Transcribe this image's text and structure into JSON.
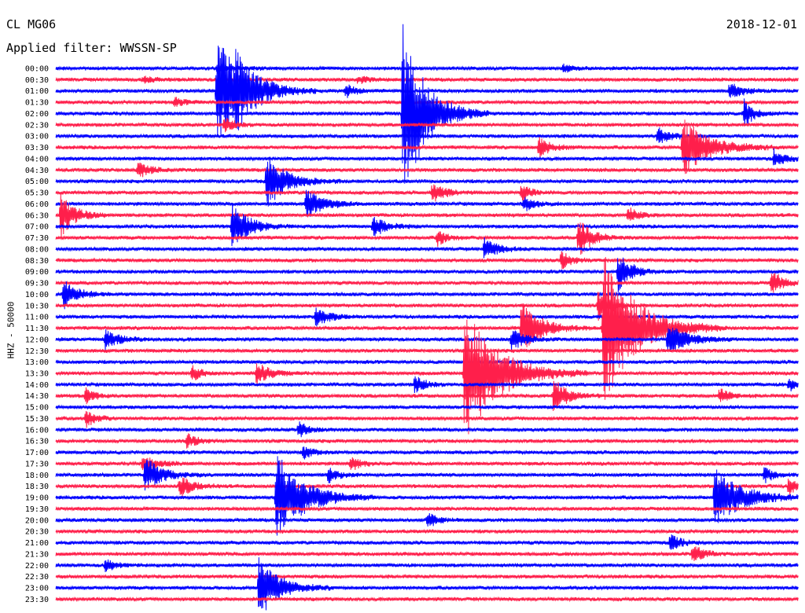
{
  "header": {
    "station": "CL MG06",
    "date": "2018-12-01",
    "filter": "Applied filter: WWSSN-SP"
  },
  "chart_data": {
    "type": "line",
    "title": "CL MG06",
    "date": "2018-12-01",
    "filter": "WWSSN-SP",
    "ylabel": "HHZ - 50000",
    "xlim_minutes": [
      0,
      30
    ],
    "colors": [
      "#0000ff",
      "#ff1f4b"
    ],
    "row_labels": [
      "00:00",
      "00:30",
      "01:00",
      "01:30",
      "02:00",
      "02:30",
      "03:00",
      "03:30",
      "04:00",
      "04:30",
      "05:00",
      "05:30",
      "06:00",
      "06:30",
      "07:00",
      "07:30",
      "08:00",
      "08:30",
      "09:00",
      "09:30",
      "10:00",
      "10:30",
      "11:00",
      "11:30",
      "12:00",
      "12:30",
      "13:00",
      "13:30",
      "14:00",
      "14:30",
      "15:00",
      "15:30",
      "16:00",
      "16:30",
      "17:00",
      "17:30",
      "18:00",
      "18:30",
      "19:00",
      "19:30",
      "20:00",
      "20:30",
      "21:00",
      "21:30",
      "22:00",
      "22:30",
      "23:00",
      "23:30"
    ],
    "events": [
      {
        "row": 0,
        "minute": 6.5,
        "amplitude": 6,
        "duration": 2.5
      },
      {
        "row": 0,
        "minute": 20.5,
        "amplitude": 5,
        "duration": 1.5
      },
      {
        "row": 1,
        "minute": 3.5,
        "amplitude": 4,
        "duration": 2.0
      },
      {
        "row": 1,
        "minute": 12.2,
        "amplitude": 5,
        "duration": 1.5
      },
      {
        "row": 2,
        "minute": 6.5,
        "amplitude": 75,
        "duration": 4.0
      },
      {
        "row": 2,
        "minute": 7.2,
        "amplitude": 26,
        "duration": 2.5
      },
      {
        "row": 2,
        "minute": 11.7,
        "amplitude": 9,
        "duration": 1.5
      },
      {
        "row": 2,
        "minute": 27.2,
        "amplitude": 10,
        "duration": 2.0
      },
      {
        "row": 3,
        "minute": 4.8,
        "amplitude": 5,
        "duration": 1.5
      },
      {
        "row": 4,
        "minute": 14.0,
        "amplitude": 115,
        "duration": 3.5
      },
      {
        "row": 4,
        "minute": 27.8,
        "amplitude": 18,
        "duration": 1.5
      },
      {
        "row": 5,
        "minute": 6.8,
        "amplitude": 10,
        "duration": 1.5
      },
      {
        "row": 6,
        "minute": 24.3,
        "amplitude": 10,
        "duration": 2.0
      },
      {
        "row": 7,
        "minute": 19.5,
        "amplitude": 12,
        "duration": 2.0
      },
      {
        "row": 7,
        "minute": 25.3,
        "amplitude": 38,
        "duration": 4.0
      },
      {
        "row": 8,
        "minute": 29.0,
        "amplitude": 12,
        "duration": 1.5
      },
      {
        "row": 9,
        "minute": 3.3,
        "amplitude": 10,
        "duration": 2.0
      },
      {
        "row": 10,
        "minute": 8.5,
        "amplitude": 34,
        "duration": 3.0
      },
      {
        "row": 11,
        "minute": 15.2,
        "amplitude": 12,
        "duration": 2.0
      },
      {
        "row": 11,
        "minute": 18.8,
        "amplitude": 10,
        "duration": 1.5
      },
      {
        "row": 12,
        "minute": 10.1,
        "amplitude": 20,
        "duration": 2.5
      },
      {
        "row": 12,
        "minute": 18.9,
        "amplitude": 10,
        "duration": 1.5
      },
      {
        "row": 13,
        "minute": 0.2,
        "amplitude": 30,
        "duration": 2.0
      },
      {
        "row": 13,
        "minute": 23.1,
        "amplitude": 10,
        "duration": 1.5
      },
      {
        "row": 14,
        "minute": 7.1,
        "amplitude": 30,
        "duration": 2.5
      },
      {
        "row": 14,
        "minute": 12.8,
        "amplitude": 13,
        "duration": 2.0
      },
      {
        "row": 15,
        "minute": 15.4,
        "amplitude": 10,
        "duration": 1.5
      },
      {
        "row": 15,
        "minute": 21.1,
        "amplitude": 25,
        "duration": 2.0
      },
      {
        "row": 16,
        "minute": 17.3,
        "amplitude": 14,
        "duration": 2.0
      },
      {
        "row": 17,
        "minute": 20.4,
        "amplitude": 12,
        "duration": 1.5
      },
      {
        "row": 18,
        "minute": 22.7,
        "amplitude": 25,
        "duration": 2.0
      },
      {
        "row": 19,
        "minute": 28.9,
        "amplitude": 18,
        "duration": 1.5
      },
      {
        "row": 20,
        "minute": 0.3,
        "amplitude": 20,
        "duration": 2.0
      },
      {
        "row": 21,
        "minute": 21.9,
        "amplitude": 18,
        "duration": 2.0
      },
      {
        "row": 22,
        "minute": 10.5,
        "amplitude": 12,
        "duration": 2.0
      },
      {
        "row": 23,
        "minute": 18.8,
        "amplitude": 35,
        "duration": 3.0
      },
      {
        "row": 23,
        "minute": 22.1,
        "amplitude": 100,
        "duration": 5.0
      },
      {
        "row": 24,
        "minute": 2.0,
        "amplitude": 12,
        "duration": 2.0
      },
      {
        "row": 24,
        "minute": 18.4,
        "amplitude": 14,
        "duration": 2.0
      },
      {
        "row": 24,
        "minute": 24.7,
        "amplitude": 20,
        "duration": 3.0
      },
      {
        "row": 27,
        "minute": 5.5,
        "amplitude": 10,
        "duration": 1.5
      },
      {
        "row": 27,
        "minute": 8.1,
        "amplitude": 15,
        "duration": 2.0
      },
      {
        "row": 27,
        "minute": 16.5,
        "amplitude": 90,
        "duration": 5.0
      },
      {
        "row": 28,
        "minute": 14.5,
        "amplitude": 12,
        "duration": 1.5
      },
      {
        "row": 28,
        "minute": 29.6,
        "amplitude": 10,
        "duration": 1.0
      },
      {
        "row": 29,
        "minute": 1.2,
        "amplitude": 10,
        "duration": 1.5
      },
      {
        "row": 29,
        "minute": 20.1,
        "amplitude": 22,
        "duration": 2.0
      },
      {
        "row": 29,
        "minute": 26.8,
        "amplitude": 10,
        "duration": 1.5
      },
      {
        "row": 31,
        "minute": 1.2,
        "amplitude": 12,
        "duration": 1.5
      },
      {
        "row": 32,
        "minute": 9.8,
        "amplitude": 10,
        "duration": 1.5
      },
      {
        "row": 33,
        "minute": 5.3,
        "amplitude": 10,
        "duration": 1.5
      },
      {
        "row": 34,
        "minute": 10.0,
        "amplitude": 8,
        "duration": 1.5
      },
      {
        "row": 35,
        "minute": 3.5,
        "amplitude": 12,
        "duration": 2.0
      },
      {
        "row": 35,
        "minute": 11.9,
        "amplitude": 10,
        "duration": 1.5
      },
      {
        "row": 36,
        "minute": 3.6,
        "amplitude": 22,
        "duration": 2.5
      },
      {
        "row": 36,
        "minute": 11.0,
        "amplitude": 10,
        "duration": 1.5
      },
      {
        "row": 36,
        "minute": 28.6,
        "amplitude": 10,
        "duration": 1.5
      },
      {
        "row": 37,
        "minute": 5.0,
        "amplitude": 14,
        "duration": 2.0
      },
      {
        "row": 37,
        "minute": 29.6,
        "amplitude": 16,
        "duration": 1.0
      },
      {
        "row": 38,
        "minute": 8.9,
        "amplitude": 60,
        "duration": 4.0
      },
      {
        "row": 38,
        "minute": 26.6,
        "amplitude": 40,
        "duration": 4.0
      },
      {
        "row": 40,
        "minute": 15.0,
        "amplitude": 10,
        "duration": 1.5
      },
      {
        "row": 42,
        "minute": 24.8,
        "amplitude": 12,
        "duration": 1.5
      },
      {
        "row": 43,
        "minute": 25.7,
        "amplitude": 14,
        "duration": 1.5
      },
      {
        "row": 44,
        "minute": 2.0,
        "amplitude": 8,
        "duration": 1.5
      },
      {
        "row": 46,
        "minute": 8.2,
        "amplitude": 40,
        "duration": 3.0
      }
    ]
  }
}
